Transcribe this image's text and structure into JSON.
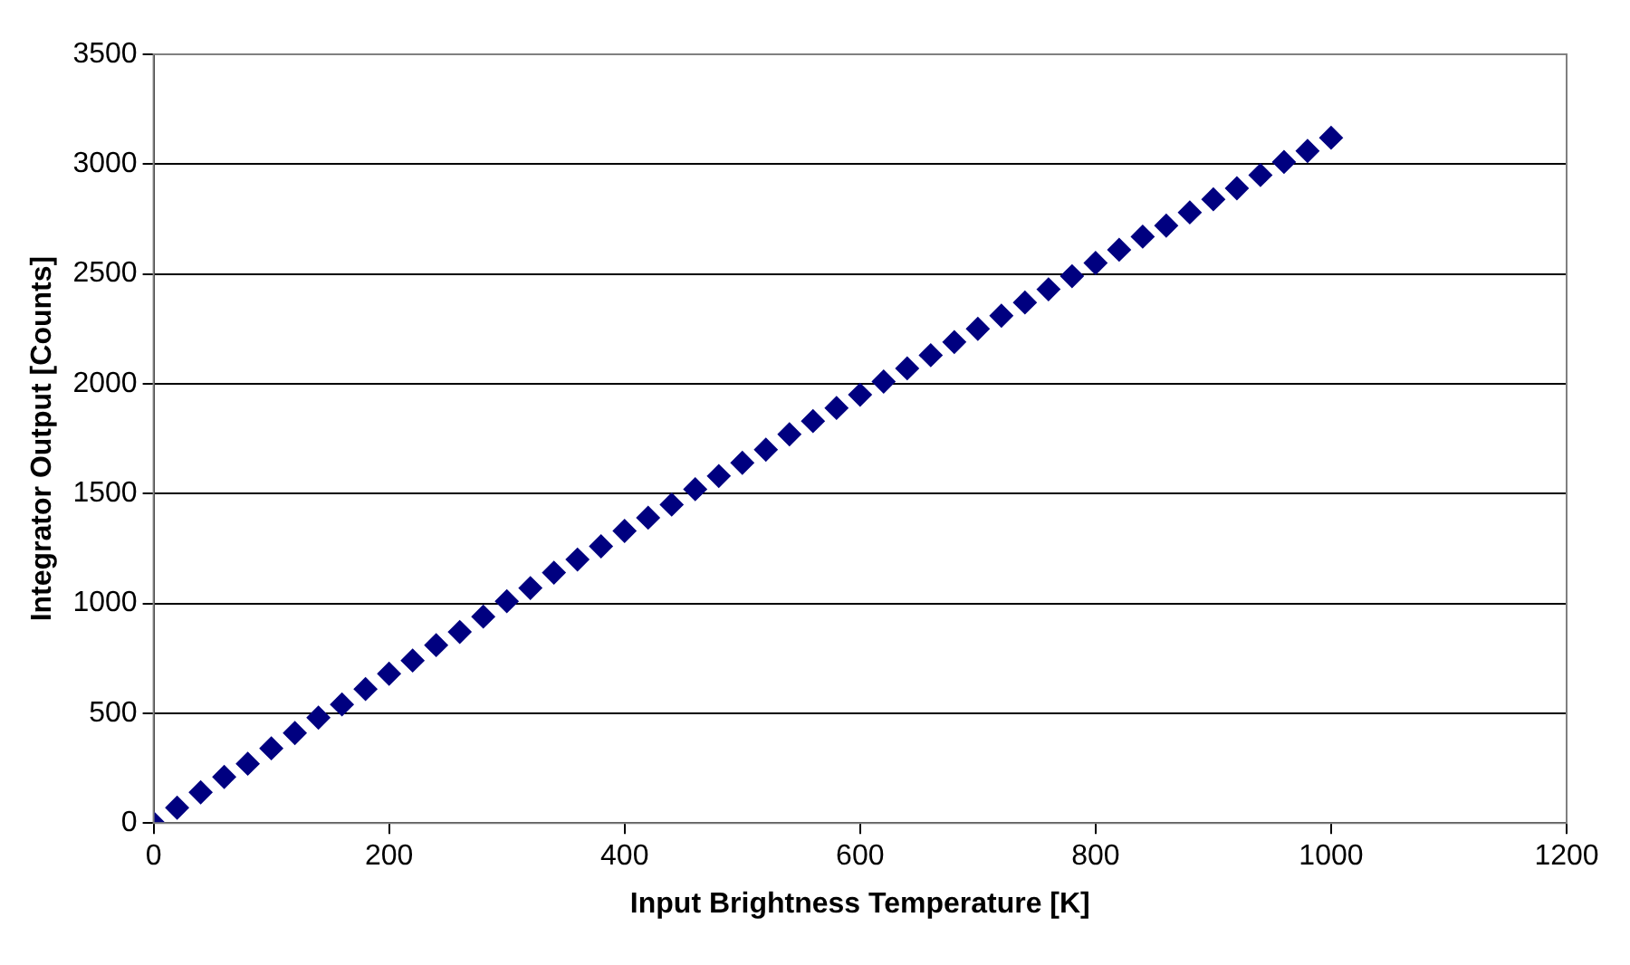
{
  "chart_data": {
    "type": "scatter",
    "xlabel": "Input Brightness Temperature [K]",
    "ylabel": "Integrator Output [Counts]",
    "x": [
      0,
      20,
      40,
      60,
      80,
      100,
      120,
      140,
      160,
      180,
      200,
      220,
      240,
      260,
      280,
      300,
      320,
      340,
      360,
      380,
      400,
      420,
      440,
      460,
      480,
      500,
      520,
      540,
      560,
      580,
      600,
      620,
      640,
      660,
      680,
      700,
      720,
      740,
      760,
      780,
      800,
      820,
      840,
      860,
      880,
      900,
      920,
      940,
      960,
      980,
      1000
    ],
    "series": [
      {
        "color": "#000080",
        "values": [
          0,
          70,
          140,
          210,
          270,
          340,
          410,
          480,
          540,
          610,
          680,
          740,
          810,
          870,
          940,
          1010,
          1070,
          1140,
          1200,
          1260,
          1330,
          1390,
          1450,
          1520,
          1580,
          1640,
          1700,
          1770,
          1830,
          1890,
          1950,
          2010,
          2070,
          2130,
          2190,
          2250,
          2310,
          2370,
          2430,
          2490,
          2550,
          2610,
          2670,
          2720,
          2780,
          2840,
          2890,
          2950,
          3010,
          3060,
          3120
        ]
      }
    ],
    "xlim": [
      0,
      1200
    ],
    "xticks": [
      0,
      200,
      400,
      600,
      800,
      1000,
      1200
    ],
    "ylim": [
      0,
      3500
    ],
    "yticks": [
      0,
      500,
      1000,
      1500,
      2000,
      2500,
      3000,
      3500
    ],
    "grid": "y",
    "legend": false,
    "marker": "diamond"
  }
}
